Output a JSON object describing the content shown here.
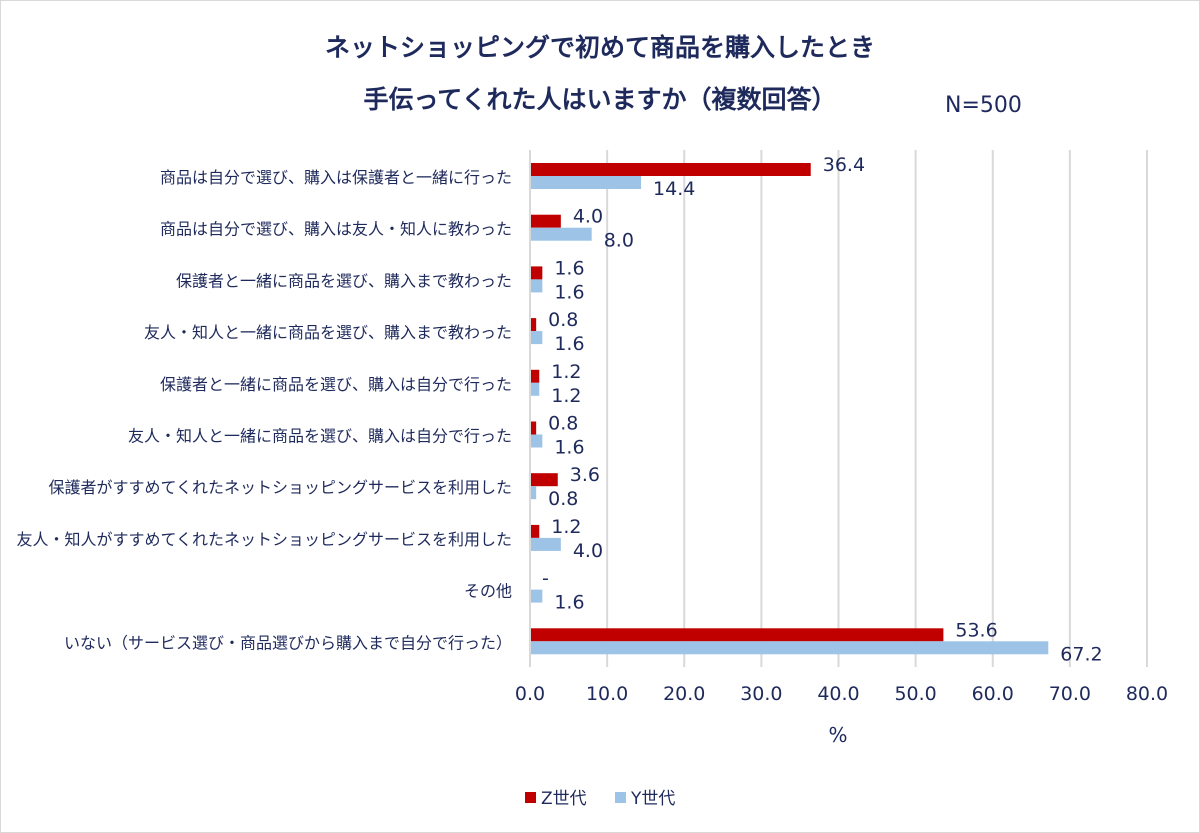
{
  "chart_data": {
    "type": "bar",
    "orientation": "horizontal",
    "title": [
      "ネットショッピングで初めて商品を購入したとき",
      "手伝ってくれた人はいますか（複数回答）"
    ],
    "annotation": "N=500",
    "xlabel": "%",
    "ylabel": "",
    "xlim": [
      0,
      80
    ],
    "xticks": [
      "0.0",
      "10.0",
      "20.0",
      "30.0",
      "40.0",
      "50.0",
      "60.0",
      "70.0",
      "80.0"
    ],
    "grid": true,
    "legend_position": "bottom",
    "categories": [
      "商品は自分で選び、購入は保護者と一緒に行った",
      "商品は自分で選び、購入は友人・知人に教わった",
      "保護者と一緒に商品を選び、購入まで教わった",
      "友人・知人と一緒に商品を選び、購入まで教わった",
      "保護者と一緒に商品を選び、購入は自分で行った",
      "友人・知人と一緒に商品を選び、購入は自分で行った",
      "保護者がすすめてくれたネットショッピングサービスを利用した",
      "友人・知人がすすめてくれたネットショッピングサービスを利用した",
      "その他",
      "いない（サービス選び・商品選びから購入まで自分で行った）"
    ],
    "series": [
      {
        "name": "Z世代",
        "color": "#c00000",
        "values": [
          36.4,
          4.0,
          1.6,
          0.8,
          1.2,
          0.8,
          3.6,
          1.2,
          null,
          53.6
        ],
        "labels": [
          "36.4",
          "4.0",
          "1.6",
          "0.8",
          "1.2",
          "0.8",
          "3.6",
          "1.2",
          "-",
          "53.6"
        ]
      },
      {
        "name": "Y世代",
        "color": "#9dc3e6",
        "values": [
          14.4,
          8.0,
          1.6,
          1.6,
          1.2,
          1.6,
          0.8,
          4.0,
          1.6,
          67.2
        ],
        "labels": [
          "14.4",
          "8.0",
          "1.6",
          "1.6",
          "1.2",
          "1.6",
          "0.8",
          "4.0",
          "1.6",
          "67.2"
        ]
      }
    ]
  }
}
